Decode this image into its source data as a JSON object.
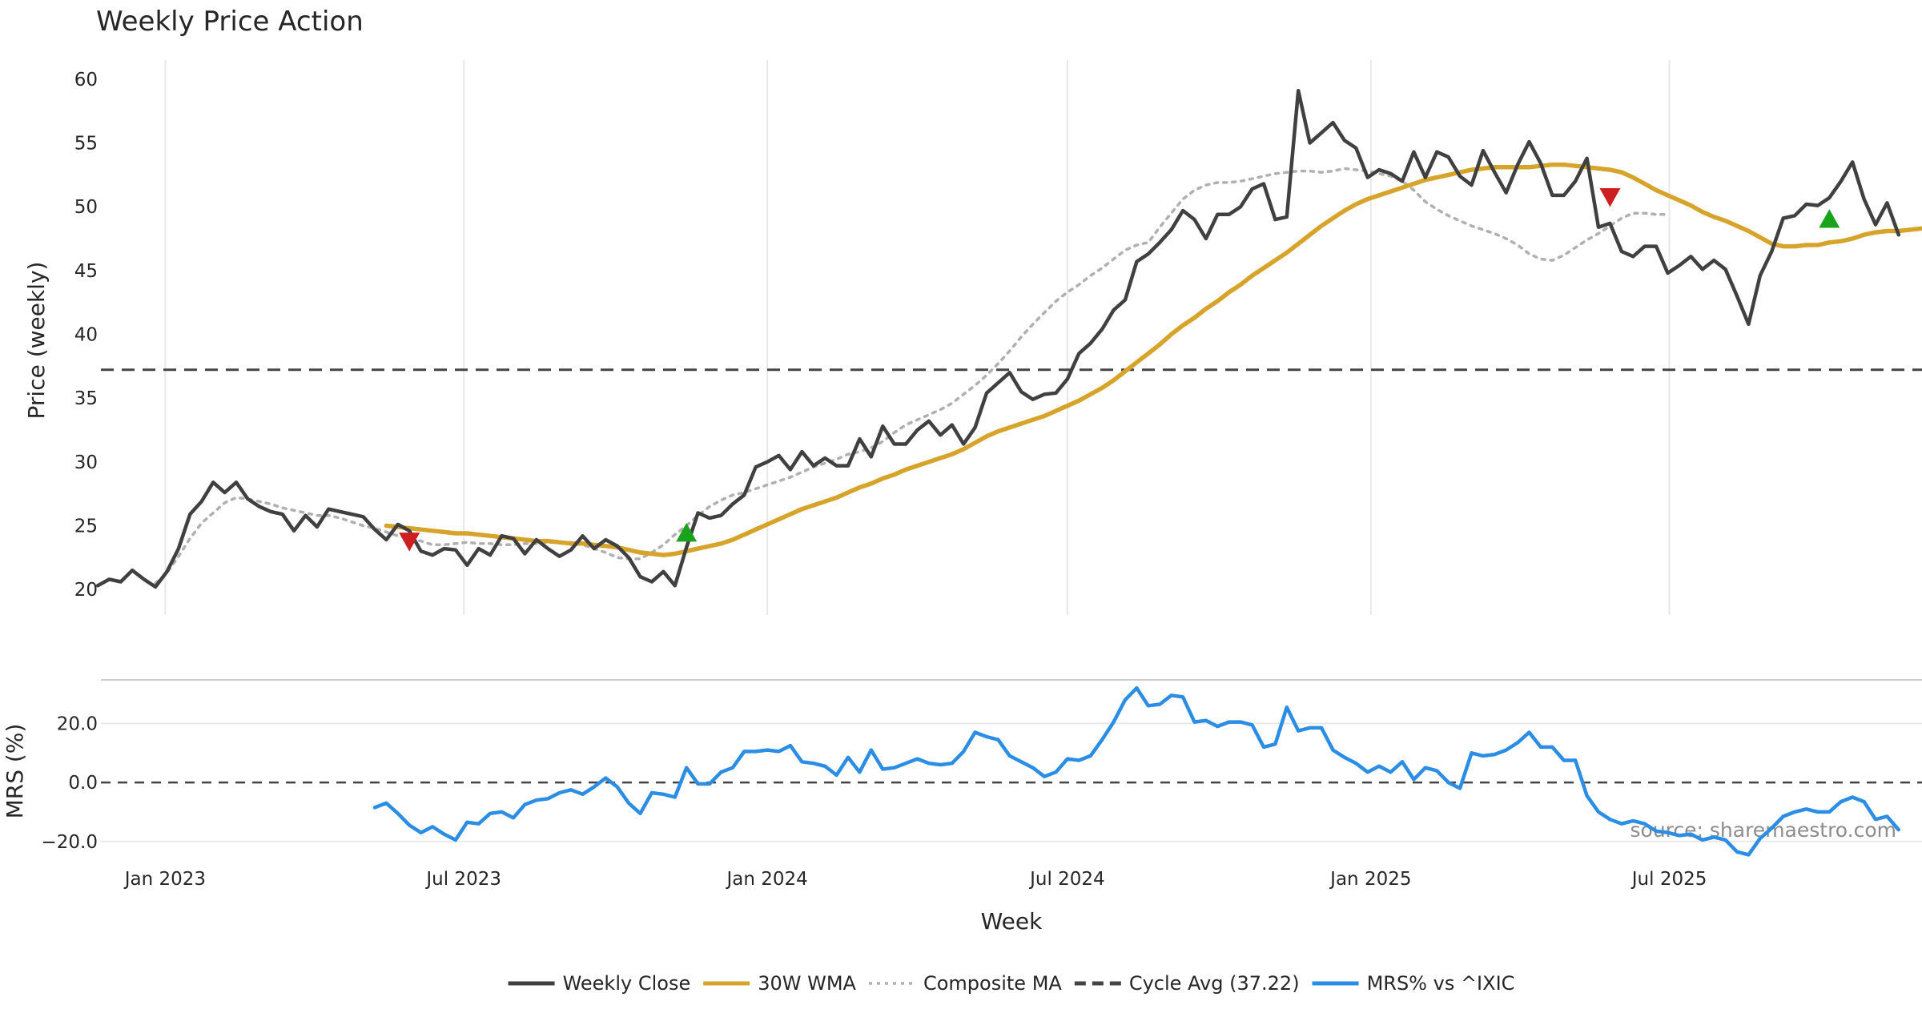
{
  "chart_data": [
    {
      "type": "line",
      "title": "Weekly Price Action",
      "xlabel": "",
      "ylabel": "Price (weekly)",
      "ylim": [
        18.5,
        61.5
      ],
      "yticks": [
        20,
        25,
        30,
        35,
        40,
        45,
        50,
        55,
        60
      ],
      "x_range": [
        "2022-11-21",
        "2025-11-03"
      ],
      "grid": {
        "x": true,
        "y": false
      },
      "legend": "bottom-center",
      "reference_line": {
        "name": "Cycle Avg (37.22)",
        "value": 37.22,
        "style": "dashed",
        "color": "#444444"
      },
      "series": [
        {
          "name": "Weekly Close",
          "color": "#404040",
          "style": "solid",
          "start": "2022-11-21",
          "interval_days": 7,
          "values": [
            20.3,
            20.8,
            20.6,
            21.5,
            20.8,
            20.2,
            21.4,
            23.2,
            25.9,
            26.9,
            28.4,
            27.6,
            28.4,
            27.1,
            26.5,
            26.1,
            25.9,
            24.6,
            25.8,
            24.9,
            26.3,
            26.1,
            25.9,
            25.7,
            24.7,
            23.9,
            25.1,
            24.6,
            23.0,
            22.7,
            23.2,
            23.1,
            21.9,
            23.2,
            22.7,
            24.2,
            24.0,
            22.8,
            23.9,
            23.2,
            22.6,
            23.1,
            24.2,
            23.2,
            23.9,
            23.4,
            22.5,
            21.0,
            20.6,
            21.4,
            20.3,
            23.3,
            26.0,
            25.6,
            25.8,
            26.7,
            27.4,
            29.6,
            30.0,
            30.5,
            29.4,
            30.8,
            29.7,
            30.3,
            29.7,
            29.7,
            31.8,
            30.4,
            32.8,
            31.4,
            31.4,
            32.5,
            33.2,
            32.1,
            32.9,
            31.4,
            32.7,
            35.4,
            36.2,
            37.0,
            35.5,
            34.9,
            35.3,
            35.4,
            36.5,
            38.5,
            39.3,
            40.4,
            41.9,
            42.7,
            45.7,
            46.3,
            47.2,
            48.2,
            49.7,
            49.0,
            47.5,
            49.4,
            49.4,
            50.0,
            51.4,
            51.8,
            49.0,
            49.2,
            59.1,
            55.0,
            55.8,
            56.6,
            55.2,
            54.6,
            52.3,
            52.9,
            52.6,
            52.0,
            54.3,
            52.3,
            54.3,
            53.9,
            52.4,
            51.7,
            54.4,
            52.7,
            51.1,
            53.3,
            55.1,
            53.4,
            50.9,
            50.9,
            52.0,
            53.8,
            48.4,
            48.7,
            46.5,
            46.1,
            46.9,
            46.9,
            44.8,
            45.4,
            46.1,
            45.1,
            45.8,
            45.1,
            43.0,
            40.8,
            44.6,
            46.5,
            49.1,
            49.3,
            50.2,
            50.1,
            50.7,
            52.0,
            53.5,
            50.6,
            48.6,
            50.3,
            47.8
          ]
        },
        {
          "name": "30W WMA",
          "color": "#d6a32b",
          "style": "solid",
          "start": "2023-05-15",
          "interval_days": 7,
          "values": [
            25.0,
            24.9,
            24.8,
            24.7,
            24.6,
            24.5,
            24.4,
            24.4,
            24.3,
            24.2,
            24.1,
            24.0,
            23.9,
            23.8,
            23.8,
            23.7,
            23.6,
            23.6,
            23.5,
            23.4,
            23.3,
            23.1,
            22.9,
            22.8,
            22.7,
            22.8,
            23.0,
            23.2,
            23.4,
            23.6,
            23.9,
            24.3,
            24.7,
            25.1,
            25.5,
            25.9,
            26.3,
            26.6,
            26.9,
            27.2,
            27.6,
            28.0,
            28.3,
            28.7,
            29.0,
            29.4,
            29.7,
            30.0,
            30.3,
            30.6,
            31.0,
            31.5,
            32.0,
            32.4,
            32.7,
            33.0,
            33.3,
            33.6,
            34.0,
            34.4,
            34.8,
            35.3,
            35.8,
            36.4,
            37.1,
            37.8,
            38.5,
            39.2,
            40.0,
            40.7,
            41.3,
            42.0,
            42.6,
            43.3,
            43.9,
            44.6,
            45.2,
            45.8,
            46.4,
            47.1,
            47.8,
            48.5,
            49.1,
            49.7,
            50.2,
            50.6,
            50.9,
            51.2,
            51.5,
            51.8,
            52.1,
            52.3,
            52.5,
            52.7,
            52.9,
            53.0,
            53.1,
            53.1,
            53.1,
            53.1,
            53.2,
            53.3,
            53.3,
            53.2,
            53.1,
            53.0,
            52.9,
            52.7,
            52.3,
            51.8,
            51.3,
            50.9,
            50.5,
            50.1,
            49.6,
            49.2,
            48.9,
            48.5,
            48.1,
            47.6,
            47.1,
            46.9,
            46.9,
            47.0,
            47.0,
            47.2,
            47.3,
            47.5,
            47.8,
            48.0,
            48.1,
            48.1,
            48.2,
            48.3
          ]
        },
        {
          "name": "Composite MA",
          "color": "#b0b0b0",
          "style": "dotted",
          "start": "2022-12-26",
          "interval_days": 7,
          "values": [
            20.5,
            21.3,
            22.6,
            24.0,
            25.2,
            26.0,
            26.8,
            27.2,
            27.1,
            26.9,
            26.7,
            26.4,
            26.2,
            26.0,
            25.8,
            25.8,
            25.6,
            25.3,
            25.0,
            24.8,
            24.5,
            24.2,
            24.0,
            23.8,
            23.5,
            23.5,
            23.6,
            23.7,
            23.6,
            23.6,
            23.5,
            23.5,
            23.6,
            23.6,
            23.7,
            23.7,
            23.7,
            23.5,
            23.2,
            22.9,
            22.5,
            22.4,
            22.4,
            22.9,
            23.5,
            24.3,
            25.0,
            25.8,
            26.5,
            27.0,
            27.4,
            27.6,
            27.9,
            28.2,
            28.5,
            28.8,
            29.2,
            29.6,
            29.9,
            30.2,
            30.6,
            30.8,
            31.1,
            31.6,
            32.3,
            32.9,
            33.3,
            33.7,
            34.1,
            34.6,
            35.3,
            36.0,
            36.8,
            37.7,
            38.7,
            39.8,
            40.8,
            41.7,
            42.6,
            43.3,
            43.9,
            44.6,
            45.2,
            45.9,
            46.6,
            47.0,
            47.2,
            48.4,
            49.5,
            50.6,
            51.3,
            51.7,
            51.9,
            51.9,
            52.0,
            52.2,
            52.4,
            52.6,
            52.7,
            52.8,
            52.8,
            52.7,
            52.8,
            53.0,
            52.9,
            52.8,
            52.6,
            52.4,
            52.0,
            51.3,
            50.4,
            49.8,
            49.3,
            48.9,
            48.5,
            48.2,
            47.9,
            47.5,
            47.0,
            46.3,
            45.9,
            45.8,
            46.2,
            46.8,
            47.4,
            47.9,
            48.5,
            49.1,
            49.5,
            49.5,
            49.4,
            49.4
          ]
        }
      ],
      "markers": [
        {
          "type": "sell",
          "shape": "down-triangle",
          "color": "#cc1f1f",
          "date": "2023-05-29",
          "y": 23.8
        },
        {
          "type": "buy",
          "shape": "up-triangle",
          "color": "#1aa31a",
          "date": "2023-11-13",
          "y": 24.4
        },
        {
          "type": "sell",
          "shape": "down-triangle",
          "color": "#cc1f1f",
          "date": "2025-05-26",
          "y": 50.8
        },
        {
          "type": "buy",
          "shape": "up-triangle",
          "color": "#1aa31a",
          "date": "2025-10-06",
          "y": 49.0
        }
      ]
    },
    {
      "type": "line",
      "title": "",
      "xlabel": "Week",
      "ylabel": "MRS (%)",
      "ylim": [
        -22.5,
        34.5
      ],
      "yticks": [
        -20,
        0,
        20
      ],
      "ytick_labels": [
        "−20.0",
        "0.0",
        "20.0"
      ],
      "xticks": [
        "2023-01-01",
        "2023-07-01",
        "2024-01-01",
        "2024-07-01",
        "2025-01-01",
        "2025-07-01"
      ],
      "xtick_labels": [
        "Jan 2023",
        "Jul 2023",
        "Jan 2024",
        "Jul 2024",
        "Jan 2025",
        "Jul 2025"
      ],
      "grid": {
        "x": false,
        "y": true
      },
      "reference_line": {
        "value": 0,
        "style": "dashed",
        "color": "#444444"
      },
      "series": [
        {
          "name": "MRS% vs ^IXIC",
          "color": "#2b8de3",
          "style": "solid",
          "start": "2023-05-08",
          "interval_days": 7,
          "values": [
            -8.5,
            -7.0,
            -10.5,
            -14.5,
            -17.0,
            -15.0,
            -17.5,
            -19.5,
            -13.5,
            -14.0,
            -10.5,
            -10.0,
            -12.0,
            -7.5,
            -6.0,
            -5.5,
            -3.5,
            -2.5,
            -4.0,
            -1.5,
            1.5,
            -1.5,
            -7.0,
            -10.5,
            -3.5,
            -4.0,
            -5.0,
            5.0,
            -0.5,
            -0.5,
            3.5,
            5.0,
            10.5,
            10.5,
            11.0,
            10.5,
            12.5,
            7.0,
            6.5,
            5.5,
            2.5,
            8.5,
            3.5,
            11.0,
            4.5,
            5.0,
            6.5,
            8.0,
            6.5,
            6.0,
            6.5,
            10.5,
            17.0,
            15.5,
            14.5,
            9.0,
            7.0,
            5.0,
            2.0,
            3.5,
            8.0,
            7.5,
            9.0,
            14.5,
            20.5,
            28.0,
            32.0,
            26.0,
            26.5,
            29.5,
            29.0,
            20.5,
            21.0,
            19.0,
            20.5,
            20.5,
            19.5,
            12.0,
            13.0,
            25.5,
            17.5,
            18.5,
            18.5,
            11.0,
            8.5,
            6.5,
            3.5,
            5.5,
            3.5,
            7.0,
            1.0,
            5.0,
            4.0,
            0.0,
            -2.0,
            10.0,
            9.0,
            9.5,
            11.0,
            13.5,
            17.0,
            12.0,
            12.0,
            7.5,
            7.5,
            -4.5,
            -10.0,
            -12.5,
            -14.0,
            -13.0,
            -14.0,
            -16.5,
            -17.0,
            -18.0,
            -17.5,
            -19.5,
            -18.5,
            -19.5,
            -23.5,
            -24.5,
            -19.0,
            -15.5,
            -11.5,
            -10.0,
            -9.0,
            -10.0,
            -10.0,
            -6.5,
            -5.0,
            -6.5,
            -12.5,
            -11.5,
            -16.0
          ]
        }
      ]
    }
  ],
  "legend": {
    "items": [
      {
        "label": "Weekly Close",
        "color": "#404040",
        "style": "solid"
      },
      {
        "label": "30W WMA",
        "color": "#d6a32b",
        "style": "solid"
      },
      {
        "label": "Composite MA",
        "color": "#b0b0b0",
        "style": "dotted"
      },
      {
        "label": "Cycle Avg (37.22)",
        "color": "#444444",
        "style": "dashed"
      },
      {
        "label": "MRS% vs ^IXIC",
        "color": "#2b8de3",
        "style": "solid"
      }
    ]
  },
  "source_text": "source: sharemaestro.com",
  "colors": {
    "grid": "#e8e8e8",
    "divider": "#cfcfcf",
    "text": "#262626"
  }
}
